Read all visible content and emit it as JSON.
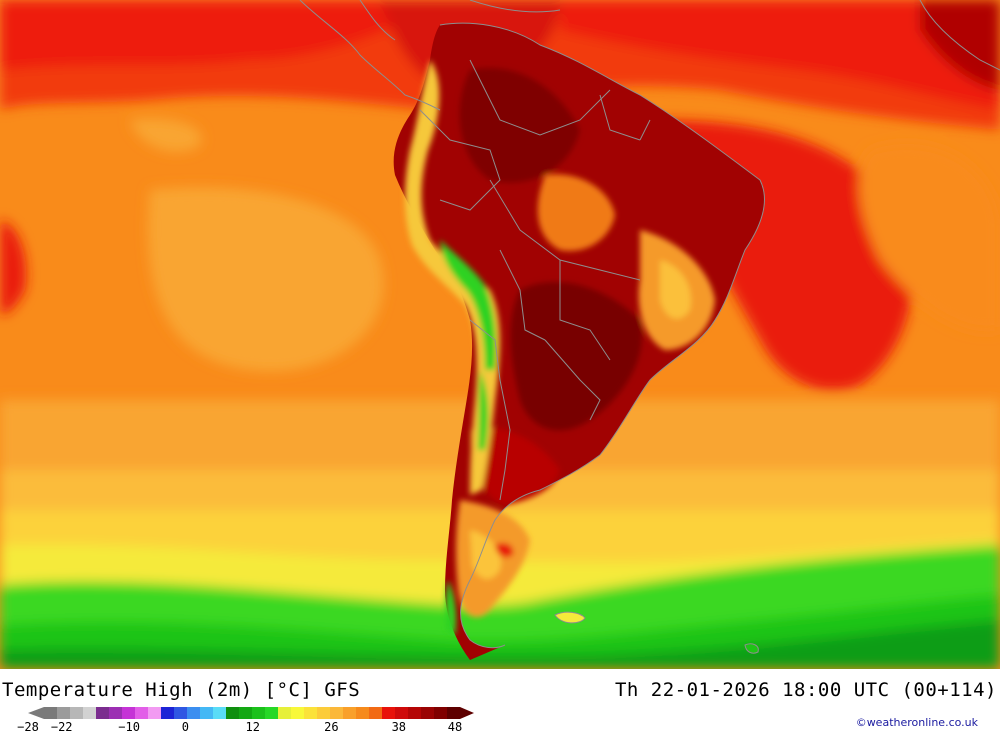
{
  "map": {
    "title": "Temperature High (2m) [°C] GFS",
    "valid_time": "Th 22-01-2026 18:00 UTC (00+114)",
    "credit": "©weatheronline.co.uk",
    "region": "South America",
    "colors": {
      "ocean_warm": "#f7a22b",
      "ocean_mid": "#f98b1a",
      "hot_red": "#e8120a",
      "very_hot": "#a50000",
      "extreme": "#7a0000",
      "cool_yellow": "#fbd339",
      "yellow": "#f5ea3a",
      "green": "#1fcf16",
      "dark_green": "#0c9a12",
      "borders": "#9a9a9a"
    }
  },
  "legend": {
    "colors": [
      "#7a7a7a",
      "#9b9b9b",
      "#b7b7b7",
      "#d2d2d2",
      "#7b2d8f",
      "#9c2fb3",
      "#c533d6",
      "#e25ee8",
      "#f29af2",
      "#1d24d6",
      "#2f57e3",
      "#3b8ef0",
      "#44b8f5",
      "#59dcf7",
      "#0f8f0f",
      "#13a813",
      "#1bc11b",
      "#26d826",
      "#e6f03a",
      "#f8f83a",
      "#fbe23a",
      "#fccc3a",
      "#fbb83a",
      "#f9a02a",
      "#f68a1c",
      "#f26a14",
      "#e8120a",
      "#cf0a0a",
      "#b50505",
      "#9a0303",
      "#800000",
      "#5e0000"
    ],
    "ticks": [
      {
        "label": "−28",
        "value": -28
      },
      {
        "label": "−22",
        "value": -22
      },
      {
        "label": "−10",
        "value": -10
      },
      {
        "label": "0",
        "value": 0
      },
      {
        "label": "12",
        "value": 12
      },
      {
        "label": "26",
        "value": 26
      },
      {
        "label": "38",
        "value": 38
      },
      {
        "label": "48",
        "value": 48
      }
    ]
  }
}
